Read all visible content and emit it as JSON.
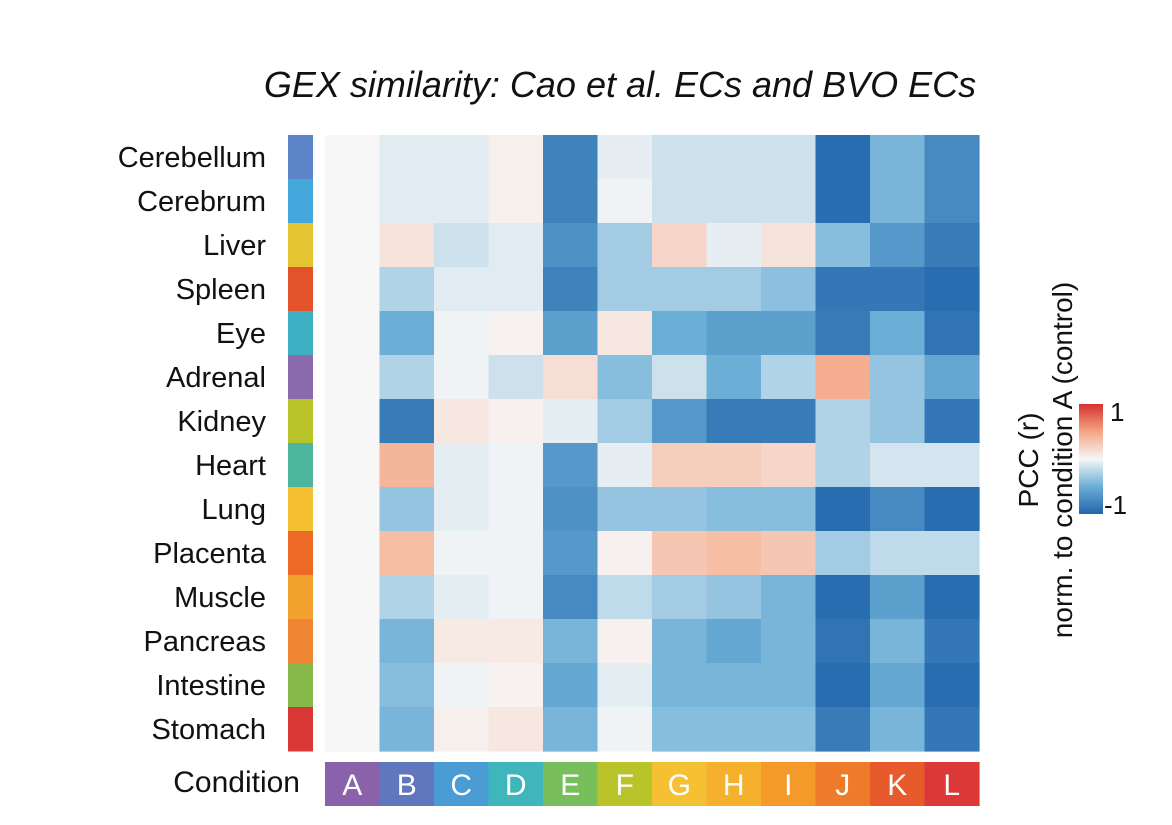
{
  "chart_data": {
    "type": "heatmap",
    "title": "GEX similarity: Cao et al. ECs and BVO ECs",
    "rows": [
      "Cerebellum",
      "Cerebrum",
      "Liver",
      "Spleen",
      "Eye",
      "Adrenal",
      "Kidney",
      "Heart",
      "Lung",
      "Placenta",
      "Muscle",
      "Pancreas",
      "Intestine",
      "Stomach"
    ],
    "row_colors": [
      "#5b85c8",
      "#45a8dc",
      "#e4c432",
      "#e3522a",
      "#3fb1c4",
      "#8a69ad",
      "#b9c42a",
      "#4bb59d",
      "#f5c031",
      "#ec6a26",
      "#f1a22e",
      "#ef8532",
      "#86b94a",
      "#d93837"
    ],
    "columns": [
      "A",
      "B",
      "C",
      "D",
      "E",
      "F",
      "G",
      "H",
      "I",
      "J",
      "K",
      "L"
    ],
    "column_colors": [
      "#8a62ab",
      "#6076bd",
      "#4b9cd4",
      "#3fb6bc",
      "#78bf5c",
      "#b8c42a",
      "#f5c031",
      "#f5b02e",
      "#f39a2b",
      "#ee7b2a",
      "#e75a2b",
      "#dd3838"
    ],
    "column_axis_label": "Condition",
    "values": [
      [
        0,
        -0.08,
        -0.08,
        0.05,
        -0.8,
        -0.06,
        -0.15,
        -0.15,
        -0.15,
        -0.95,
        -0.45,
        -0.75
      ],
      [
        0,
        -0.08,
        -0.08,
        0.05,
        -0.8,
        -0.03,
        -0.15,
        -0.15,
        -0.15,
        -0.95,
        -0.45,
        -0.75
      ],
      [
        0,
        0.12,
        -0.15,
        -0.08,
        -0.7,
        -0.3,
        0.2,
        -0.06,
        0.12,
        -0.4,
        -0.65,
        -0.85
      ],
      [
        0,
        -0.25,
        -0.08,
        -0.08,
        -0.8,
        -0.3,
        -0.3,
        -0.3,
        -0.38,
        -0.88,
        -0.88,
        -0.95
      ],
      [
        0,
        -0.5,
        -0.03,
        0.03,
        -0.6,
        0.1,
        -0.5,
        -0.6,
        -0.6,
        -0.85,
        -0.5,
        -0.9
      ],
      [
        0,
        -0.25,
        -0.03,
        -0.15,
        0.15,
        -0.4,
        -0.15,
        -0.5,
        -0.25,
        0.45,
        -0.35,
        -0.55
      ],
      [
        0,
        -0.85,
        0.1,
        0.04,
        -0.07,
        -0.3,
        -0.65,
        -0.85,
        -0.85,
        -0.25,
        -0.35,
        -0.88
      ],
      [
        0,
        0.4,
        -0.07,
        -0.03,
        -0.65,
        -0.06,
        0.25,
        0.25,
        0.2,
        -0.25,
        -0.12,
        -0.12
      ],
      [
        0,
        -0.35,
        -0.07,
        -0.03,
        -0.7,
        -0.35,
        -0.35,
        -0.4,
        -0.4,
        -0.95,
        -0.75,
        -0.95
      ],
      [
        0,
        0.35,
        -0.03,
        -0.03,
        -0.65,
        0.04,
        0.3,
        0.35,
        0.3,
        -0.3,
        -0.2,
        -0.2
      ],
      [
        0,
        -0.25,
        -0.07,
        -0.03,
        -0.75,
        -0.2,
        -0.3,
        -0.35,
        -0.45,
        -0.95,
        -0.6,
        -0.95
      ],
      [
        0,
        -0.45,
        0.08,
        0.08,
        -0.45,
        0.04,
        -0.45,
        -0.55,
        -0.45,
        -0.9,
        -0.45,
        -0.88
      ],
      [
        0,
        -0.4,
        -0.03,
        0.03,
        -0.55,
        -0.07,
        -0.45,
        -0.45,
        -0.45,
        -0.95,
        -0.55,
        -0.95
      ],
      [
        0,
        -0.45,
        0.05,
        0.1,
        -0.45,
        -0.03,
        -0.4,
        -0.4,
        -0.4,
        -0.85,
        -0.45,
        -0.88
      ]
    ],
    "colorbar": {
      "label_line1": "PCC (r)",
      "label_line2": "norm. to condition A (control)",
      "max_label": "1",
      "min_label": "-1",
      "range": [
        -1,
        1
      ],
      "colors": {
        "min": "#2166ac",
        "mid": "#f7f7f7",
        "max": "#d6312f"
      }
    }
  }
}
